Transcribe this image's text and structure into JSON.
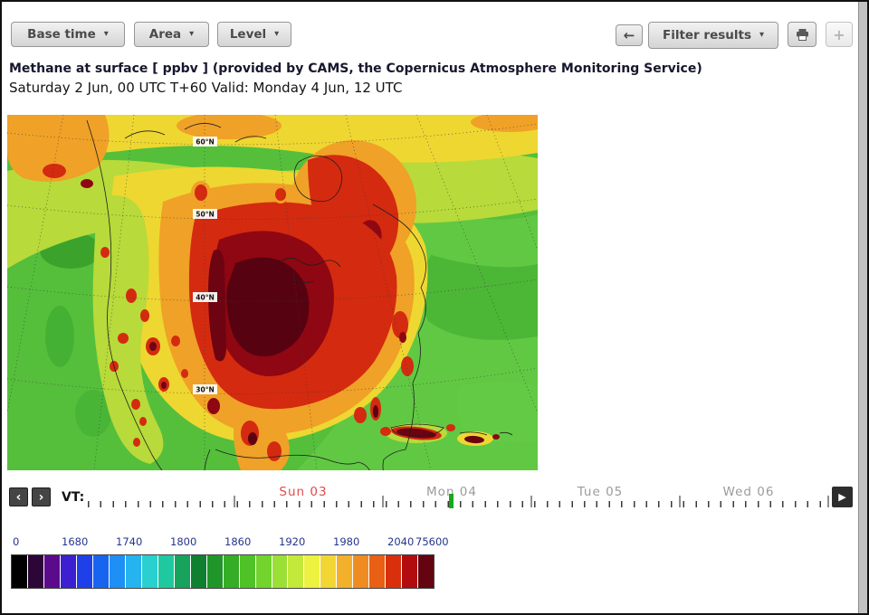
{
  "toolbar": {
    "caret": "▾",
    "buttons": {
      "base_time": "Base time",
      "area": "Area",
      "level": "Level",
      "back": "←",
      "filter_results": "Filter results",
      "add": "+"
    }
  },
  "header": {
    "title": "Methane at surface [ ppbv ] (provided by CAMS, the Copernicus Atmosphere Monitoring Service)",
    "subtitle": "Saturday 2 Jun, 00 UTC T+60 Valid: Monday 4 Jun, 12 UTC"
  },
  "map": {
    "lat_labels": [
      "60°N",
      "50°N",
      "40°N",
      "30°N"
    ]
  },
  "timeline": {
    "vt_label": "VT:",
    "prev": "‹",
    "next": "›",
    "play": "▶",
    "marker_color": "#17a81b",
    "days": [
      {
        "label": "Sun 03",
        "color": "#e04b4b"
      },
      {
        "label": "Mon 04",
        "color": "#9b9b9b"
      },
      {
        "label": "Tue 05",
        "color": "#9b9b9b"
      },
      {
        "label": "Wed 06",
        "color": "#9b9b9b"
      }
    ]
  },
  "legend": {
    "tick_labels": [
      "0",
      "1680",
      "1740",
      "1800",
      "1860",
      "1920",
      "1980",
      "2040",
      "75600"
    ],
    "colors": [
      "#000000",
      "#2b0636",
      "#5c0a8c",
      "#3b1fd0",
      "#1f3fe8",
      "#1764f0",
      "#1e8ff5",
      "#25b4f0",
      "#29d0cf",
      "#1fc9a0",
      "#17a35c",
      "#0f7f30",
      "#20962a",
      "#35ad27",
      "#4fc228",
      "#72d42d",
      "#9be035",
      "#c3e93a",
      "#ecf23f",
      "#f2d634",
      "#f2b02b",
      "#ef8c21",
      "#e85f15",
      "#d8300d",
      "#b30c0f",
      "#640411"
    ]
  }
}
